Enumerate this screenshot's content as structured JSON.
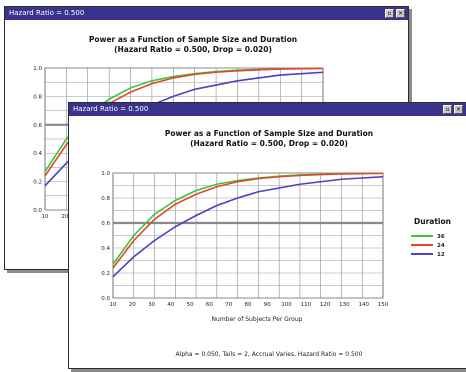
{
  "windows": [
    {
      "title": "Hazard Ratio = 0.500",
      "chart_title": "Power as a Function of Sample Size and Duration",
      "chart_subtitle": "(Hazard Ratio = 0.500, Drop = 0.020)"
    },
    {
      "title": "Hazard Ratio = 0.500",
      "chart_title": "Power as a Function of Sample Size and Duration",
      "chart_subtitle": "(Hazard Ratio = 0.500, Drop = 0.020)",
      "legend_title": "Duration",
      "xlabel": "Number of Subjects Per Group",
      "footer": "Alpha = 0.050, Tails = 2, Accrual Varies, Hazard Ratio = 0.500"
    }
  ],
  "chart_data": {
    "type": "line",
    "title": "Power as a Function of Sample Size and Duration",
    "subtitle": "(Hazard Ratio = 0.500, Drop = 0.020)",
    "xlabel": "Number of Subjects Per Group",
    "ylabel": "",
    "xlim": [
      10,
      140
    ],
    "ylim": [
      0.0,
      1.0
    ],
    "x_ticks": [
      "10",
      "20",
      "30",
      "40",
      "50",
      "60",
      "70",
      "80",
      "90",
      "100",
      "110",
      "120",
      "130",
      "140",
      "150"
    ],
    "y_ticks": [
      "0.0",
      "0.2",
      "0.4",
      "0.6",
      "0.8",
      "1.0"
    ],
    "legend_title": "Duration",
    "x": [
      10,
      20,
      30,
      40,
      50,
      60,
      70,
      80,
      90,
      100,
      110,
      120,
      130,
      140
    ],
    "series": [
      {
        "name": "36",
        "color": "#3cc43c",
        "values": [
          0.27,
          0.5,
          0.67,
          0.78,
          0.86,
          0.91,
          0.94,
          0.96,
          0.975,
          0.985,
          0.99,
          0.993,
          0.996,
          0.998
        ]
      },
      {
        "name": "24",
        "color": "#e8442c",
        "values": [
          0.24,
          0.46,
          0.63,
          0.75,
          0.83,
          0.89,
          0.93,
          0.955,
          0.97,
          0.98,
          0.987,
          0.992,
          0.995,
          0.997
        ]
      },
      {
        "name": "12",
        "color": "#4a42c0",
        "values": [
          0.17,
          0.33,
          0.46,
          0.57,
          0.66,
          0.74,
          0.8,
          0.85,
          0.88,
          0.91,
          0.93,
          0.95,
          0.96,
          0.97
        ]
      }
    ],
    "grid": true,
    "legend_position": "right"
  }
}
